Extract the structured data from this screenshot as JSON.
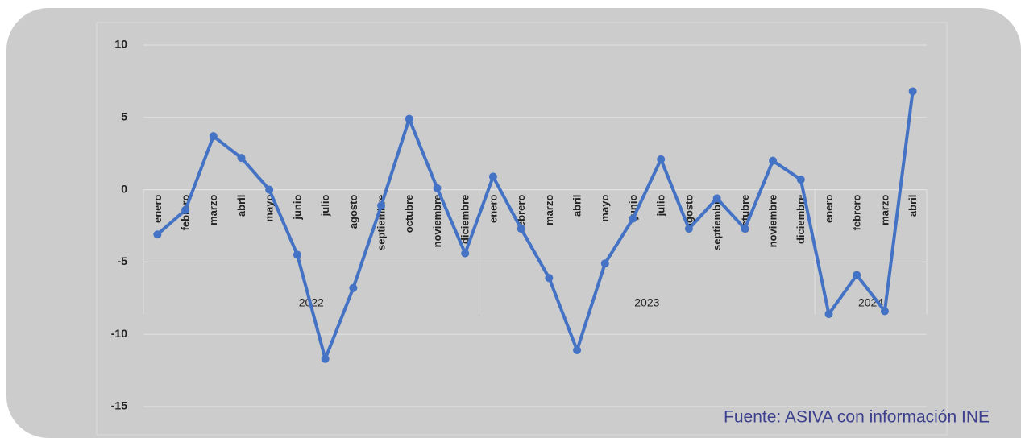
{
  "chart_data": {
    "type": "line",
    "groups": [
      {
        "name": "2022",
        "categories": [
          "enero",
          "febrero",
          "marzo",
          "abril",
          "mayo",
          "junio",
          "julio",
          "agosto",
          "septiembre",
          "octubre",
          "noviembre",
          "diciembre"
        ]
      },
      {
        "name": "2023",
        "categories": [
          "enero",
          "febrero",
          "marzo",
          "abril",
          "mayo",
          "junio",
          "julio",
          "agosto",
          "septiembre",
          "octubre",
          "noviembre",
          "diciembre"
        ]
      },
      {
        "name": "2024",
        "categories": [
          "enero",
          "febrero",
          "marzo",
          "abril"
        ]
      }
    ],
    "values": [
      -3.1,
      -1.4,
      3.7,
      2.2,
      0,
      -4.5,
      -11.7,
      -6.8,
      -1.1,
      4.9,
      0.1,
      -4.4,
      0.9,
      -2.7,
      -6.1,
      -11.1,
      -5.1,
      -2.0,
      2.1,
      -2.7,
      -0.6,
      -2.7,
      2.0,
      0.7,
      -8.6,
      -5.9,
      -8.4,
      6.8
    ],
    "color": "#4472c4",
    "ylim": [
      -15,
      10
    ],
    "yticks": [
      -15,
      -10,
      -5,
      0,
      5,
      10
    ],
    "grid": true,
    "source": "Fuente: ASIVA con información INE"
  }
}
